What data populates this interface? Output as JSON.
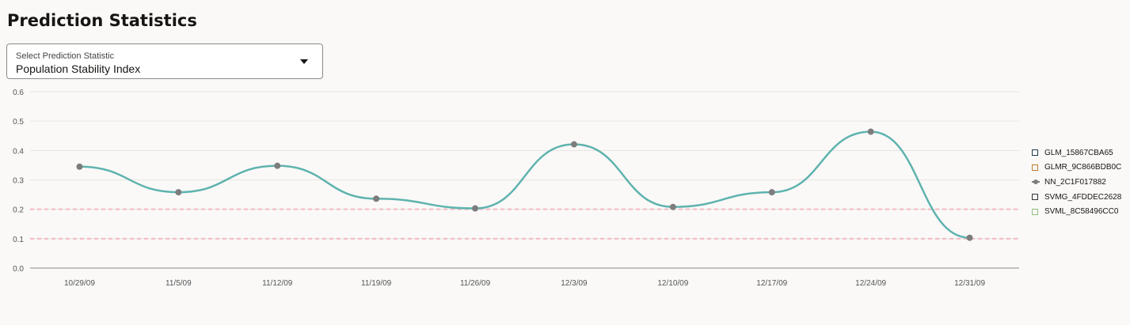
{
  "page_title": "Prediction Statistics",
  "statistic_select": {
    "label": "Select Prediction Statistic",
    "value": "Population Stability Index"
  },
  "chart_data": {
    "type": "line",
    "categories": [
      "10/29/09",
      "11/5/09",
      "11/12/09",
      "11/19/09",
      "11/26/09",
      "12/3/09",
      "12/10/09",
      "12/17/09",
      "12/24/09",
      "12/31/09"
    ],
    "series": [
      {
        "name": "NN_2C1F017882",
        "values": [
          0.345,
          0.258,
          0.348,
          0.236,
          0.203,
          0.421,
          0.208,
          0.258,
          0.464,
          0.103
        ],
        "color": "#5fb3ae"
      }
    ],
    "ylim": [
      0,
      0.6
    ],
    "yticks": [
      "0.0",
      "0.1",
      "0.2",
      "0.3",
      "0.4",
      "0.5",
      "0.6"
    ],
    "threshold_lines": [
      0.1,
      0.2
    ],
    "threshold_color": "#f4b8c0",
    "grid": true,
    "legend_position": "right"
  },
  "legend": [
    {
      "name": "GLM_15867CBA65",
      "color": "#1f3a4d",
      "marker": "square"
    },
    {
      "name": "GLMR_9C866BDB0C",
      "color": "#c77a2a",
      "marker": "square"
    },
    {
      "name": "NN_2C1F017882",
      "color": "#7d7d7d",
      "marker": "line-dot"
    },
    {
      "name": "SVMG_4FDDEC2628",
      "color": "#333333",
      "marker": "square"
    },
    {
      "name": "SVML_8C58496CC0",
      "color": "#8fbf7f",
      "marker": "square"
    }
  ]
}
